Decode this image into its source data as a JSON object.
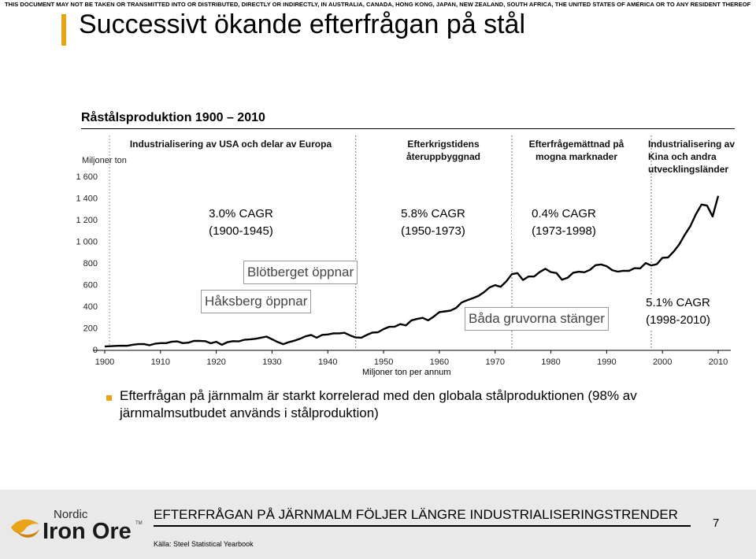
{
  "header": {
    "disclaimer": "THIS DOCUMENT MAY NOT BE TAKEN OR TRANSMITTED INTO OR DISTRIBUTED, DIRECTLY OR INDIRECTLY, IN AUSTRALIA, CANADA, HONG KONG, JAPAN, NEW ZEALAND, SOUTH AFRICA, THE UNITED STATES OF AMERICA OR TO ANY RESIDENT THEREOF",
    "title": "Successivt ökande efterfrågan på stål"
  },
  "chart_data": {
    "type": "line",
    "title": "Råstålsproduktion 1900 – 2010",
    "ylabel": "Miljoner ton",
    "xlabel": "Miljoner ton per annum",
    "x_ticks": [
      "1900",
      "1910",
      "1920",
      "1930",
      "1940",
      "1950",
      "1960",
      "1970",
      "1980",
      "1990",
      "2000",
      "2010"
    ],
    "y_ticks": [
      "0",
      "200",
      "400",
      "600",
      "800",
      "1 000",
      "1 200",
      "1 400",
      "1 600"
    ],
    "xlim": [
      1900,
      2010
    ],
    "ylim": [
      0,
      1600
    ],
    "line_color": "#000000",
    "series": [
      {
        "x": [
          1900,
          1901,
          1902,
          1903,
          1904,
          1905,
          1906,
          1907,
          1908,
          1909,
          1910,
          1911,
          1912,
          1913,
          1914,
          1915,
          1916,
          1917,
          1918,
          1919,
          1920,
          1921,
          1922,
          1923,
          1924,
          1925,
          1926,
          1927,
          1928,
          1929,
          1930,
          1931,
          1932,
          1933,
          1934,
          1935,
          1936,
          1937,
          1938,
          1939,
          1940,
          1941,
          1942,
          1943,
          1944,
          1945,
          1946,
          1947,
          1948,
          1949,
          1950,
          1951,
          1952,
          1953,
          1954,
          1955,
          1956,
          1957,
          1958,
          1959,
          1960,
          1961,
          1962,
          1963,
          1964,
          1965,
          1966,
          1967,
          1968,
          1969,
          1970,
          1971,
          1972,
          1973,
          1974,
          1975,
          1976,
          1977,
          1978,
          1979,
          1980,
          1981,
          1982,
          1983,
          1984,
          1985,
          1986,
          1987,
          1988,
          1989,
          1990,
          1991,
          1992,
          1993,
          1994,
          1995,
          1996,
          1997,
          1998,
          1999,
          2000,
          2001,
          2002,
          2003,
          2004,
          2005,
          2006,
          2007,
          2008,
          2009,
          2010
        ],
        "values": [
          28,
          31,
          34,
          36,
          35,
          44,
          50,
          52,
          40,
          54,
          60,
          60,
          72,
          76,
          60,
          64,
          80,
          80,
          78,
          58,
          72,
          44,
          68,
          78,
          76,
          90,
          94,
          100,
          110,
          120,
          95,
          70,
          50,
          68,
          82,
          100,
          122,
          135,
          110,
          136,
          140,
          150,
          150,
          155,
          130,
          112,
          110,
          135,
          157,
          160,
          189,
          210,
          212,
          235,
          223,
          270,
          283,
          293,
          270,
          305,
          346,
          353,
          360,
          385,
          435,
          456,
          475,
          495,
          530,
          574,
          595,
          580,
          630,
          697,
          706,
          643,
          675,
          675,
          717,
          746,
          716,
          707,
          645,
          663,
          710,
          719,
          714,
          736,
          780,
          786,
          770,
          734,
          720,
          728,
          727,
          752,
          750,
          799,
          777,
          789,
          848,
          851,
          904,
          970,
          1060,
          1140,
          1250,
          1340,
          1330,
          1230,
          1420
        ]
      }
    ],
    "periods": [
      "Industrialisering av USA och delar av Europa",
      "Efterkrigstidens återuppbyggnad",
      "Efterfrågemättnad på mogna marknader",
      "Industrialisering av Kina och andra utvecklingsländer"
    ],
    "cagr": [
      {
        "rate": "3.0% CAGR",
        "range": "(1900-1945)"
      },
      {
        "rate": "5.8% CAGR",
        "range": "(1950-1973)"
      },
      {
        "rate": "0.4% CAGR",
        "range": "(1973-1998)"
      },
      {
        "rate": "5.1% CAGR",
        "range": "(1998-2010)"
      }
    ],
    "events": [
      "Blötberget öppnar",
      "Håksberg öppnar",
      "Båda gruvorna stänger"
    ]
  },
  "bullet": {
    "text": "Efterfrågan på järnmalm är starkt korrelerad med den globala stålproduktionen (98% av järnmalmsutbudet används i stålproduktion)"
  },
  "footer": {
    "heading": "EFTERFRÅGAN PÅ JÄRNMALM FÖLJER LÄNGRE INDUSTRIALISERINGSTRENDER",
    "page_number": "7",
    "source": "Källa: Steel Statistical Yearbook",
    "logo_top": "Nordic",
    "logo_main": "Iron Ore",
    "logo_tm": "TM"
  },
  "colors": {
    "accent": "#e8a317",
    "footer_bg": "#e9e9e9"
  }
}
